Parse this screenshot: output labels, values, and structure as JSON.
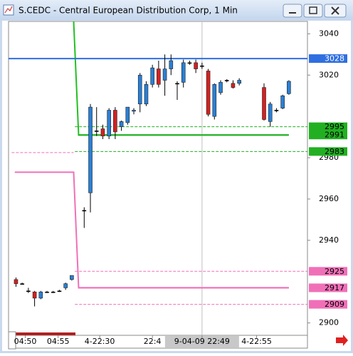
{
  "window_title": "S.CEDC - Central European Distribution Corp, 1 Min",
  "chart_data": {
    "type": "candlestick",
    "up_color": "#2a7fd4",
    "down_color": "#d42020",
    "xlim": [
      -1.2,
      47
    ],
    "ylim": [
      2894,
      3046
    ],
    "yticks": [
      2900,
      2940,
      2960,
      2980,
      3020,
      3040
    ],
    "xticks": [
      {
        "value": 1.5,
        "label": "04:50"
      },
      {
        "value": 6.8,
        "label": "04:55"
      },
      {
        "value": 13.5,
        "label": "4-22:30"
      },
      {
        "value": 22,
        "label": "22:4"
      },
      {
        "value": 30,
        "label": "9-04-09 22:49"
      },
      {
        "value": 38.8,
        "label": "4-22:55"
      }
    ],
    "crosshair_x": 30,
    "x": [
      0,
      1,
      2,
      3,
      4,
      5,
      6,
      7,
      8,
      9,
      11,
      12,
      13,
      14,
      15,
      16,
      17,
      18,
      19,
      20,
      21,
      22,
      23,
      24,
      25,
      26,
      27,
      28,
      29,
      30,
      31,
      32,
      33,
      34,
      35,
      36,
      40,
      41,
      42,
      43,
      44
    ],
    "open": [
      2921,
      2919,
      2915.5,
      2915,
      2912,
      2915,
      2915,
      2915.5,
      2917,
      2921,
      2954.5,
      2963,
      2993,
      2994,
      2990.5,
      3003,
      2995,
      2997,
      3002.5,
      3006,
      3006,
      3015.5,
      3023,
      3017.5,
      3023,
      3016,
      3016.5,
      3026,
      3026,
      3024.5,
      3022,
      3000,
      3011.5,
      3017.5,
      3016,
      3016,
      3014,
      2997.5,
      3003,
      3004,
      3011
    ],
    "high": [
      2922,
      2919.5,
      2917,
      2915.5,
      2915.5,
      2915.5,
      2915.5,
      2916,
      2919.5,
      2923,
      2956,
      3006,
      3004.5,
      2996,
      3004,
      3004.5,
      2998,
      3004,
      3004,
      3021,
      3017,
      3025,
      3027,
      3030,
      3030,
      3017,
      3027.5,
      3027,
      3027.5,
      3026,
      3023,
      3016,
      3017.5,
      3018,
      3017.5,
      3018.5,
      3016,
      3007,
      3004,
      3010.5,
      3017.5
    ],
    "low": [
      2917.5,
      2918.5,
      2914.5,
      2908,
      2911.5,
      2914.5,
      2914.5,
      2915,
      2916,
      2920.5,
      2946,
      2953.5,
      2990.5,
      2989,
      2989,
      2989,
      2993,
      2996,
      3001,
      3002,
      3005,
      3014,
      3014,
      3010,
      3020,
      3008,
      3014,
      3025,
      3021,
      3023,
      3000,
      2998.5,
      3010.5,
      3016.5,
      3013.5,
      3015,
      2998,
      2995,
      3002,
      3003.5,
      3010.5
    ],
    "close": [
      2919,
      2919,
      2915.5,
      2912,
      2915,
      2915,
      2915,
      2915.5,
      2919,
      2923,
      2954.5,
      3004.5,
      2993,
      2990.5,
      3003,
      2992.5,
      2997.5,
      3004.5,
      3003,
      3020,
      3015.5,
      3023.5,
      3015.5,
      3023,
      3027,
      3016,
      3026,
      3026,
      3023,
      3024.5,
      3001,
      3015.5,
      3016.5,
      3017.5,
      3014,
      3017.5,
      2998.5,
      3006,
      3003,
      3010,
      3017
    ],
    "levels": [
      {
        "value": 3028,
        "color": "#2f6fe0",
        "style": "solid",
        "from": -1.2,
        "to": 47
      },
      {
        "value": 2995,
        "color": "#22b022",
        "style": "dash",
        "from": 9.5,
        "to": 47
      },
      {
        "value": 2991,
        "color": "#22b022",
        "style": "solid",
        "from": 10,
        "to": 44
      },
      {
        "value": 2983,
        "color": "#22b022",
        "style": "dash",
        "from": 9.5,
        "to": 47
      },
      {
        "value": 2925,
        "color": "#f070b8",
        "style": "dash",
        "from": 9.5,
        "to": 47
      },
      {
        "value": 2917,
        "color": "#f070b8",
        "style": "solid",
        "from": 10,
        "to": 44
      },
      {
        "value": 2909,
        "color": "#f070b8",
        "style": "dash",
        "from": 9.5,
        "to": 47
      }
    ],
    "step_lines": [
      {
        "color": "#22c022",
        "style": "solid",
        "x": [
          9.3,
          10.1,
          44
        ],
        "values": [
          3046,
          2991,
          2991
        ]
      },
      {
        "color": "#f070b8",
        "style": "solid",
        "x": [
          -0.2,
          9.3,
          10.1,
          44
        ],
        "values": [
          2973,
          2973,
          2917,
          2917
        ]
      },
      {
        "color": "#f070b8",
        "style": "dash",
        "x": [
          -0.7,
          9.3
        ],
        "values": [
          2982.5,
          2982.5
        ]
      }
    ]
  }
}
